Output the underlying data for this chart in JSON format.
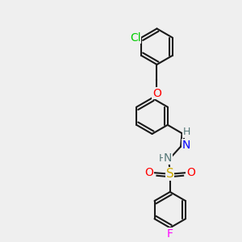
{
  "bg_color": "#efefef",
  "bond_color": "#1a1a1a",
  "bond_width": 1.5,
  "atom_colors": {
    "Cl": "#00cc00",
    "O": "#ff0000",
    "N": "#0000ff",
    "S": "#ccaa00",
    "F": "#ff00ff",
    "H": "#558888",
    "C": "#1a1a1a"
  },
  "font_size": 9,
  "label_font_size": 9
}
